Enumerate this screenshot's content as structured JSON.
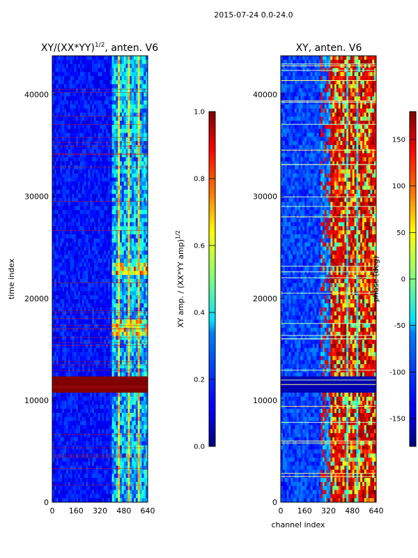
{
  "suptitle": "2015-07-24 0.0-24.0",
  "chart_data": [
    {
      "type": "heatmap",
      "title_main": "XY/(XX*YY)",
      "title_sup": "1/2",
      "title_suffix": ", anten. V6",
      "xlabel": "",
      "ylabel": "time index",
      "xlim": [
        0,
        640
      ],
      "ylim": [
        0,
        43800
      ],
      "xticks": [
        0,
        160,
        320,
        480,
        640
      ],
      "yticks": [
        0,
        10000,
        20000,
        30000,
        40000
      ],
      "active_channels": [
        400,
        640
      ],
      "saturated_block": [
        10600,
        12500
      ],
      "hot_bands": [
        [
          16200,
          18000
        ],
        [
          22300,
          23300
        ]
      ],
      "colorbar": {
        "label_main": "XY amp. / (XX*YY amp)",
        "label_sup": "1/2",
        "range": [
          0,
          1
        ],
        "ticks": [
          "0.0",
          "0.2",
          "0.4",
          "0.6",
          "0.8",
          "1.0"
        ]
      }
    },
    {
      "type": "heatmap",
      "title": "XY, anten. V6",
      "xlabel": "channel index",
      "ylabel": "",
      "xlim": [
        0,
        640
      ],
      "ylim": [
        0,
        43800
      ],
      "xticks": [
        0,
        160,
        320,
        480,
        640
      ],
      "yticks": [
        0,
        10000,
        20000,
        30000,
        40000
      ],
      "saturated_block": [
        10600,
        12500
      ],
      "colorbar": {
        "label": "phase (deg)",
        "range": [
          -180,
          180
        ],
        "ticks": [
          "-150",
          "-100",
          "-50",
          "0",
          "50",
          "100",
          "150"
        ]
      }
    }
  ]
}
